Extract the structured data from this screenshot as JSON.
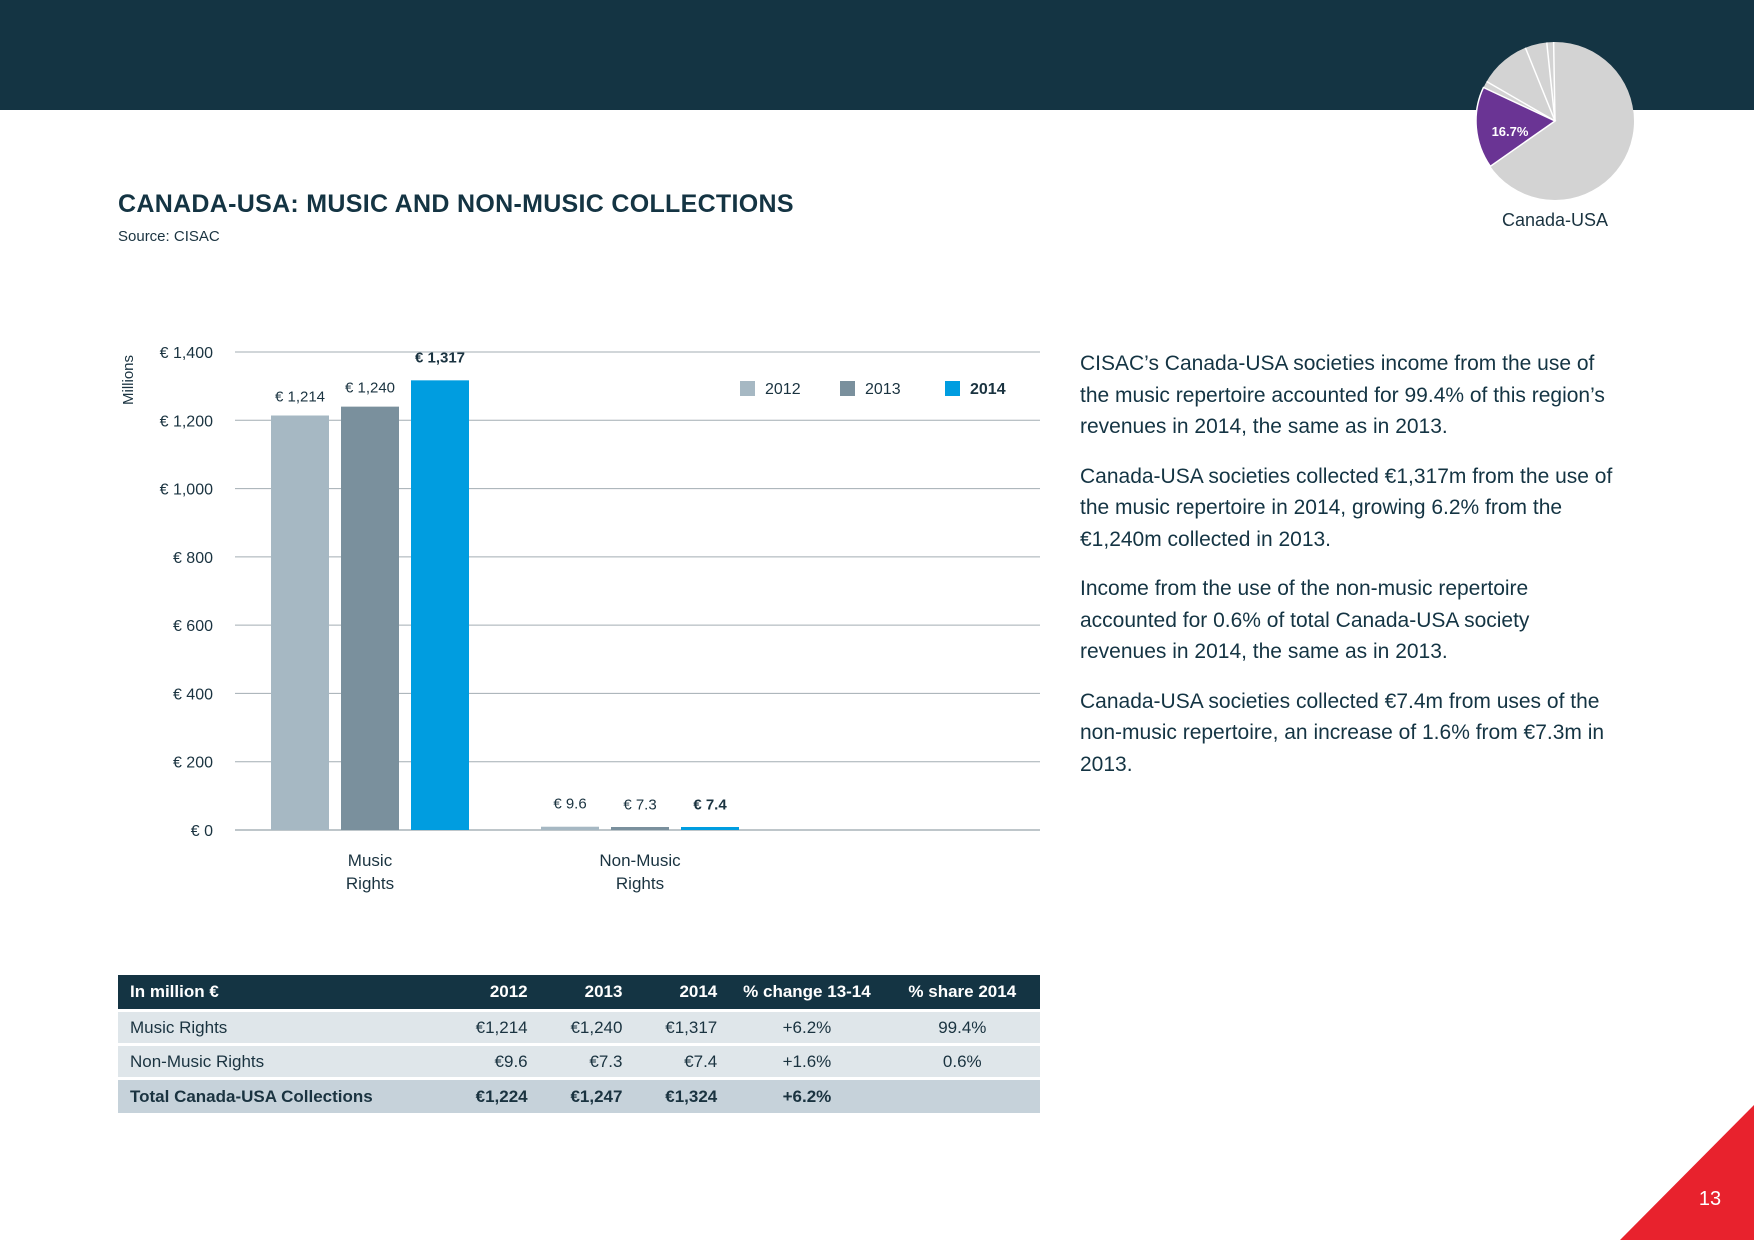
{
  "header": {
    "pie": {
      "label": "16.7%",
      "caption": "Canada-USA",
      "highlight_share": 16.7,
      "highlight_color": "#6a3494",
      "other_color": "#d3d3d3"
    }
  },
  "title": "CANADA-USA: MUSIC AND NON-MUSIC COLLECTIONS",
  "source": "Source: CISAC",
  "chart_data": {
    "type": "bar",
    "title": "",
    "ylabel": "Millions",
    "xlabel": "",
    "ylim": [
      0,
      1400
    ],
    "yticks": [
      0,
      200,
      400,
      600,
      800,
      1000,
      1200,
      1400
    ],
    "ytick_labels": [
      "€ 0",
      "€ 200",
      "€ 400",
      "€ 600",
      "€ 800",
      "€ 1,000",
      "€ 1,200",
      "€ 1,400"
    ],
    "categories": [
      [
        "Music",
        "Rights"
      ],
      [
        "Non-Music",
        "Rights"
      ]
    ],
    "grid": true,
    "legend_position": "top-right",
    "series": [
      {
        "name": "2012",
        "values": [
          1214,
          9.6
        ],
        "labels": [
          "€ 1,214",
          "€ 9.6"
        ],
        "color": "#a6b8c3",
        "bold": false
      },
      {
        "name": "2013",
        "values": [
          1240,
          7.3
        ],
        "labels": [
          "€ 1,240",
          "€ 7.3"
        ],
        "color": "#7a909d",
        "bold": false
      },
      {
        "name": "2014",
        "values": [
          1317,
          7.4
        ],
        "labels": [
          "€ 1,317",
          "€ 7.4"
        ],
        "color": "#009de0",
        "bold": true
      }
    ]
  },
  "paragraphs": [
    "CISAC’s Canada-USA societies income from the use of the music repertoire accounted for 99.4% of this region’s revenues in 2014, the same as in 2013.",
    "Canada-USA societies collected €1,317m from the use of the music repertoire in 2014, growing 6.2% from the €1,240m collected in 2013.",
    "Income from the use of the non-music repertoire accounted for 0.6% of total Canada-USA society revenues in 2014, the same as in 2013.",
    "Canada-USA societies collected €7.4m from uses of the non-music repertoire, an increase of 1.6% from €7.3m in 2013."
  ],
  "table": {
    "headers": [
      "In million €",
      "2012",
      "2013",
      "2014",
      "% change 13-14",
      "% share 2014"
    ],
    "rows": [
      [
        "Music Rights",
        "€1,214",
        "€1,240",
        "€1,317",
        "+6.2%",
        "99.4%"
      ],
      [
        "Non-Music Rights",
        "€9.6",
        "€7.3",
        "€7.4",
        "+1.6%",
        "0.6%"
      ]
    ],
    "total": [
      "Total Canada-USA Collections",
      "€1,224",
      "€1,247",
      "€1,324",
      "+6.2%",
      ""
    ]
  },
  "page_number": "13",
  "colors": {
    "navy": "#143443",
    "accent_red": "#e8222d"
  }
}
